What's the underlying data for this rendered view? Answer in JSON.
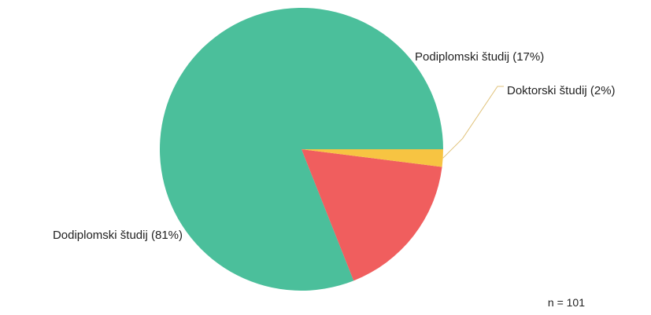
{
  "chart_data": {
    "type": "pie",
    "slices": [
      {
        "label": "Dodiplomski študij (81%)",
        "value": 81,
        "color": "#4bbf9b"
      },
      {
        "label": "Podiplomski študij (17%)",
        "value": 17,
        "color": "#f05e5e"
      },
      {
        "label": "Doktorski študij (2%)",
        "value": 2,
        "color": "#f7c442"
      }
    ],
    "start_angle_deg": 0,
    "direction": "counterclockwise",
    "leader_line_color": "#e0c27a",
    "sample_size_label": "n = 101"
  }
}
